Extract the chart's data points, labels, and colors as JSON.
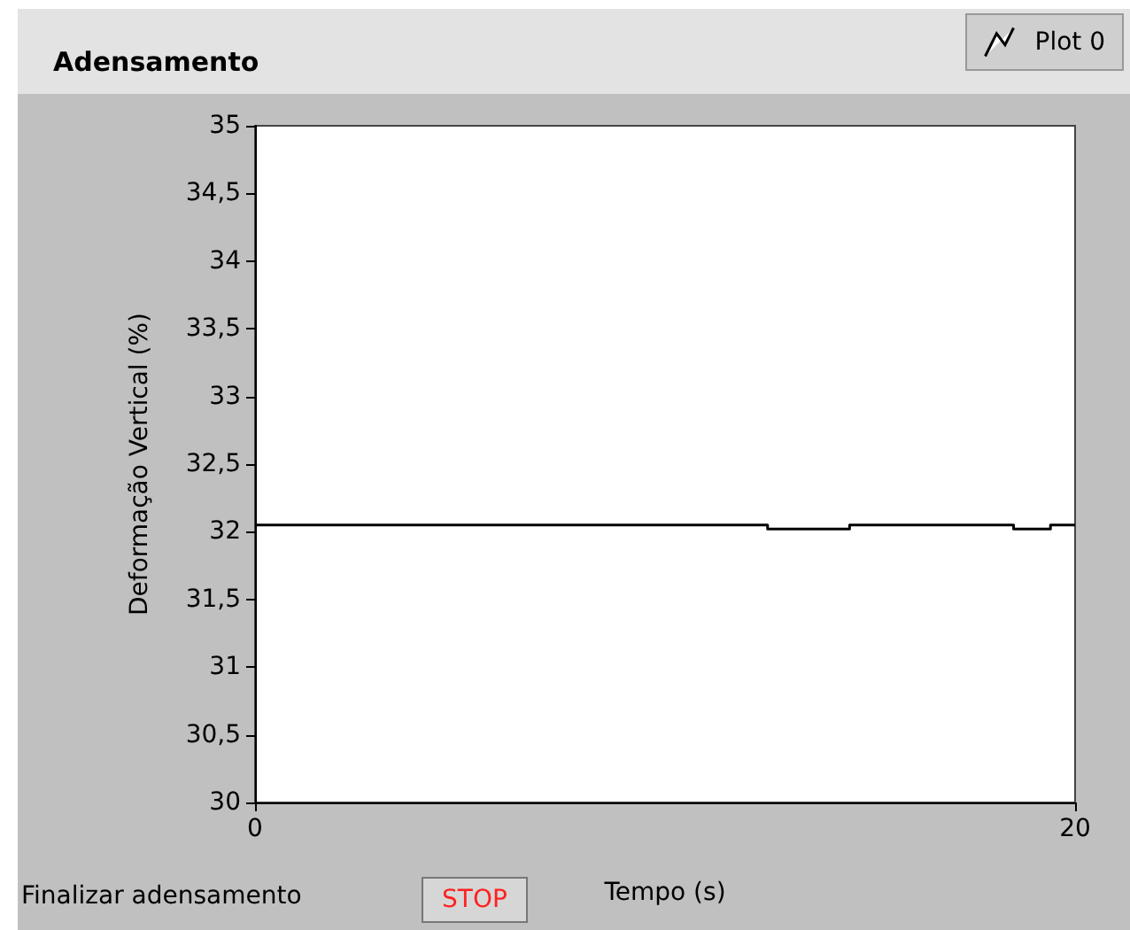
{
  "chart_data": {
    "type": "step",
    "title": "Adensamento",
    "xlabel": "Tempo (s)",
    "ylabel": "Deformação Vertical (%)",
    "annotations": [
      "Finalizar adensamento",
      "STOP"
    ],
    "series": [
      {
        "name": "Plot 0",
        "color": "#000000",
        "x": [
          0,
          12.5,
          14.5,
          18.5,
          19.4,
          20
        ],
        "values": [
          32.05,
          32.02,
          32.05,
          32.02,
          32.05,
          32.05
        ]
      }
    ],
    "xlim": [
      0,
      20
    ],
    "xticks": [
      0,
      20
    ],
    "ylim": [
      30,
      35
    ],
    "yticks": [
      30,
      {
        "value": 30.5,
        "label": "30,5"
      },
      31,
      {
        "value": 31.5,
        "label": "31,5"
      },
      32,
      {
        "value": 32.5,
        "label": "32,5"
      },
      33,
      {
        "value": 33.5,
        "label": "33,5"
      },
      34,
      {
        "value": 34.5,
        "label": "34,5"
      },
      35
    ],
    "grid": false,
    "legend": "top right",
    "marker": "none",
    "line_style": "solid"
  }
}
